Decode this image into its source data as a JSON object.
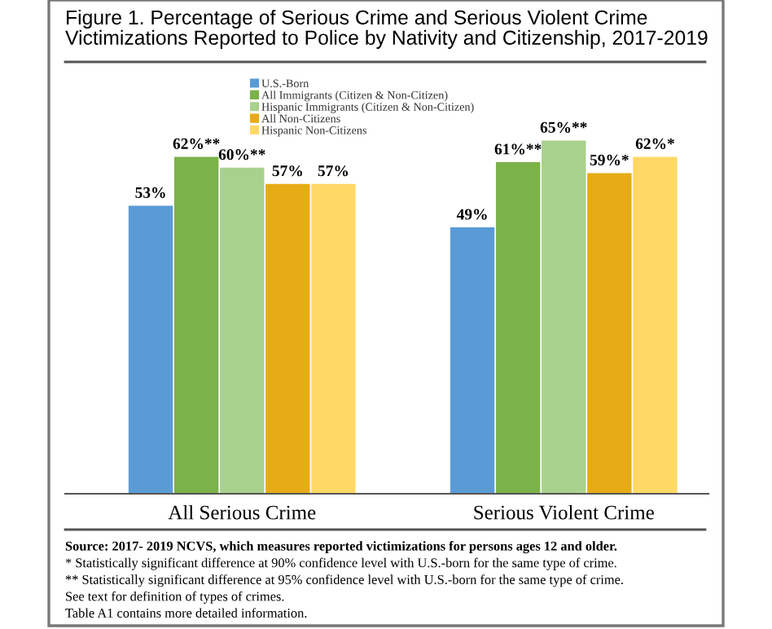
{
  "chart_data": {
    "type": "bar",
    "title": "Figure 1. Percentage of Serious Crime and Serious Violent Crime Victimizations Reported to Police by Nativity and Citizenship, 2017-2019",
    "categories": [
      "All Serious Crime",
      "Serious Violent Crime"
    ],
    "series": [
      {
        "name": "U.S.-Born",
        "color": "#5b9bd5",
        "values": [
          53,
          49
        ],
        "value_labels": [
          "53%",
          "49%"
        ]
      },
      {
        "name": "All Immigrants (Citizen & Non-Citizen)",
        "color": "#7cb24a",
        "values": [
          62,
          61
        ],
        "value_labels": [
          "62%**",
          "61%**"
        ]
      },
      {
        "name": "Hispanic Immigrants (Citizen & Non-Citizen)",
        "color": "#a9d18e",
        "values": [
          60,
          65
        ],
        "value_labels": [
          "60%**",
          "65%**"
        ]
      },
      {
        "name": "All Non-Citizens",
        "color": "#e6ab17",
        "values": [
          57,
          59
        ],
        "value_labels": [
          "57%",
          "59%*"
        ]
      },
      {
        "name": "Hispanic Non-Citizens",
        "color": "#ffd966",
        "values": [
          57,
          62
        ],
        "value_labels": [
          "57%",
          "62%*"
        ]
      }
    ],
    "legend": "top",
    "grid": false,
    "annotations": [
      "Source: 2017- 2019 NCVS, which measures reported victimizations for persons ages 12 and older.",
      "* Statistically significant difference at 90% confidence level with U.S.-born for the same type of crime.",
      "** Statistically significant difference at 95% confidence level with U.S.-born for the same type of crime.",
      "See text for definition of types of crimes.",
      "Table A1 contains more detailed information."
    ]
  }
}
